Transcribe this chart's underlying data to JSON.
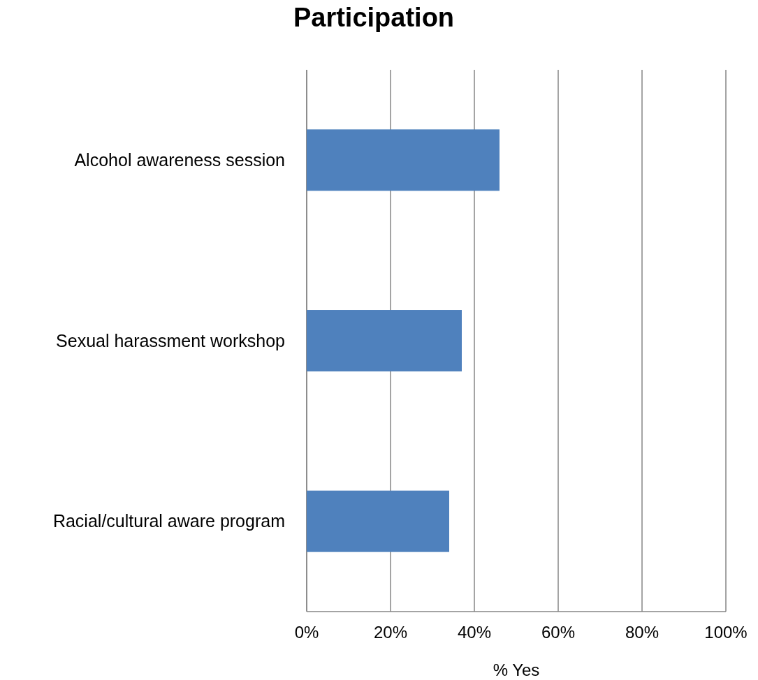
{
  "chart_data": {
    "type": "bar",
    "orientation": "horizontal",
    "title": "Participation",
    "xlabel": "% Yes",
    "categories": [
      "Alcohol awareness session",
      "Sexual harassment workshop",
      "Racial/cultural aware program"
    ],
    "values": [
      46,
      37,
      34
    ],
    "color": "#4f81bd",
    "xlim": [
      0,
      100
    ],
    "xticks": [
      {
        "value": 0,
        "label": "0%"
      },
      {
        "value": 20,
        "label": "20%"
      },
      {
        "value": 40,
        "label": "40%"
      },
      {
        "value": 60,
        "label": "60%"
      },
      {
        "value": 80,
        "label": "80%"
      },
      {
        "value": 100,
        "label": "100%"
      }
    ],
    "grid": "x"
  }
}
